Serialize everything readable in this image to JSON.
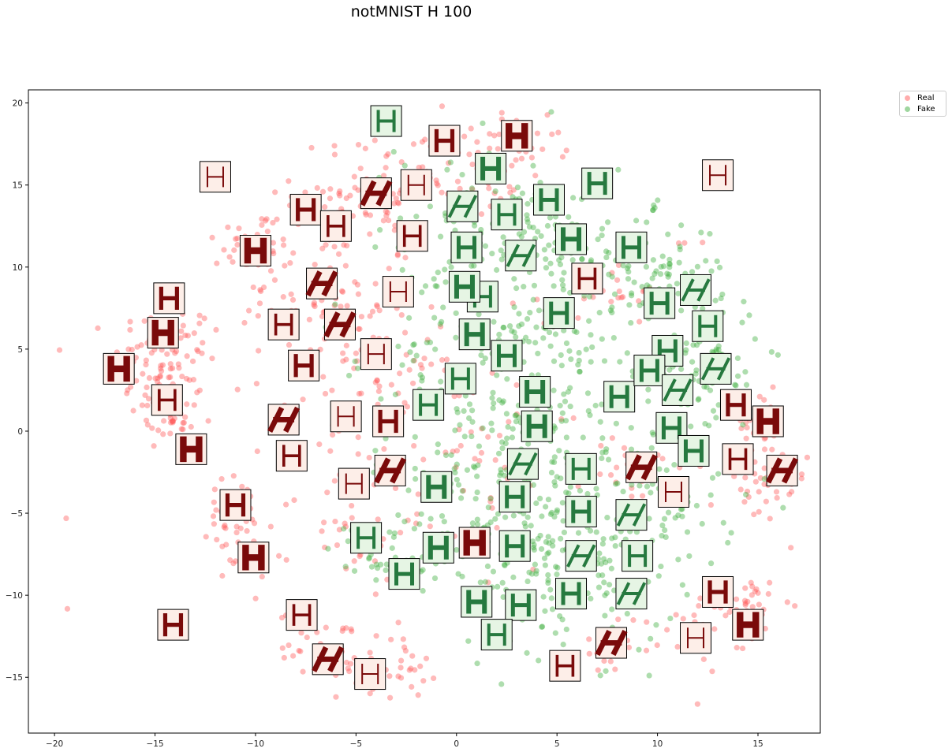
{
  "chart_data": {
    "type": "scatter",
    "title": "notMNIST H 100",
    "xlabel": "",
    "ylabel": "",
    "xlim": [
      -21.3,
      18.1
    ],
    "ylim": [
      -18.4,
      20.8
    ],
    "xticks": [
      -20,
      -15,
      -10,
      -5,
      0,
      5,
      10,
      15
    ],
    "yticks": [
      -15,
      -10,
      -5,
      0,
      5,
      10,
      15,
      20
    ],
    "grid": false,
    "legend_position": "outside top-right",
    "series": [
      {
        "name": "Real",
        "color": "#ff5a5a",
        "clusters": [
          {
            "x": -14.5,
            "y": 4.0,
            "sx": 1.3,
            "sy": 2.0,
            "n": 110
          },
          {
            "x": -14.2,
            "y": 0.5,
            "sx": 0.8,
            "sy": 0.8,
            "n": 25
          },
          {
            "x": -10.0,
            "y": 11.5,
            "sx": 1.0,
            "sy": 1.0,
            "n": 35
          },
          {
            "x": -6.5,
            "y": 8.0,
            "sx": 2.2,
            "sy": 2.2,
            "n": 100
          },
          {
            "x": -4.5,
            "y": 14.5,
            "sx": 1.8,
            "sy": 1.6,
            "n": 70
          },
          {
            "x": -0.5,
            "y": 16.0,
            "sx": 1.8,
            "sy": 1.5,
            "n": 55
          },
          {
            "x": -4.0,
            "y": 2.0,
            "sx": 2.2,
            "sy": 2.0,
            "n": 70
          },
          {
            "x": -11.0,
            "y": -5.5,
            "sx": 1.0,
            "sy": 1.4,
            "n": 40
          },
          {
            "x": -10.0,
            "y": -8.0,
            "sx": 0.8,
            "sy": 0.8,
            "n": 15
          },
          {
            "x": -6.5,
            "y": -13.0,
            "sx": 1.2,
            "sy": 1.0,
            "n": 35
          },
          {
            "x": -3.5,
            "y": -14.5,
            "sx": 1.2,
            "sy": 0.9,
            "n": 35
          },
          {
            "x": 8.0,
            "y": -13.0,
            "sx": 1.0,
            "sy": 1.0,
            "n": 20
          },
          {
            "x": 12.5,
            "y": -12.0,
            "sx": 1.0,
            "sy": 1.2,
            "n": 25
          },
          {
            "x": 14.5,
            "y": -10.5,
            "sx": 0.8,
            "sy": 0.8,
            "n": 35
          },
          {
            "x": 15.0,
            "y": -3.5,
            "sx": 1.2,
            "sy": 1.2,
            "n": 40
          },
          {
            "x": 15.0,
            "y": 0.5,
            "sx": 1.0,
            "sy": 1.0,
            "n": 30
          },
          {
            "x": 7.5,
            "y": 8.5,
            "sx": 1.5,
            "sy": 1.0,
            "n": 25
          },
          {
            "x": 3.5,
            "y": 17.0,
            "sx": 1.2,
            "sy": 1.0,
            "n": 20
          },
          {
            "x": 0.0,
            "y": -2.0,
            "sx": 3.0,
            "sy": 4.0,
            "n": 60
          },
          {
            "x": -5.5,
            "y": -6.0,
            "sx": 1.6,
            "sy": 1.5,
            "n": 30
          },
          {
            "x": 9.0,
            "y": -2.0,
            "sx": 1.2,
            "sy": 1.4,
            "n": 25
          },
          {
            "x": 11.5,
            "y": 11.5,
            "sx": 0.4,
            "sy": 0.4,
            "n": 3
          },
          {
            "x": -19.5,
            "y": -5.3,
            "sx": 0.1,
            "sy": 0.1,
            "n": 1
          },
          {
            "x": -19.2,
            "y": -10.8,
            "sx": 0.1,
            "sy": 0.1,
            "n": 1
          },
          {
            "x": 5.0,
            "y": 18.2,
            "sx": 0.2,
            "sy": 0.1,
            "n": 2
          }
        ]
      },
      {
        "name": "Fake",
        "color": "#3fae3f",
        "clusters": [
          {
            "x": 3.5,
            "y": 5.0,
            "sx": 3.2,
            "sy": 5.5,
            "n": 330
          },
          {
            "x": 2.0,
            "y": 13.0,
            "sx": 2.5,
            "sy": 2.5,
            "n": 80
          },
          {
            "x": 9.5,
            "y": 10.0,
            "sx": 1.6,
            "sy": 1.5,
            "n": 80
          },
          {
            "x": 12.0,
            "y": 4.0,
            "sx": 1.6,
            "sy": 2.4,
            "n": 110
          },
          {
            "x": 10.5,
            "y": -4.5,
            "sx": 2.0,
            "sy": 2.0,
            "n": 60
          },
          {
            "x": 5.5,
            "y": -8.0,
            "sx": 2.8,
            "sy": 2.8,
            "n": 170
          },
          {
            "x": -3.5,
            "y": -7.5,
            "sx": 1.4,
            "sy": 1.0,
            "n": 40
          },
          {
            "x": 1.0,
            "y": -4.0,
            "sx": 2.5,
            "sy": 3.0,
            "n": 100
          }
        ]
      }
    ],
    "thumbnails": {
      "real": [
        [
          -12.0,
          15.5
        ],
        [
          -7.5,
          13.5
        ],
        [
          -10.0,
          11.0
        ],
        [
          -6.0,
          12.5
        ],
        [
          -4.0,
          14.5
        ],
        [
          -2.0,
          15.0
        ],
        [
          -0.6,
          17.7
        ],
        [
          3.0,
          18.0
        ],
        [
          -2.2,
          11.9
        ],
        [
          -6.7,
          9.0
        ],
        [
          -2.9,
          8.5
        ],
        [
          -14.3,
          8.1
        ],
        [
          -14.6,
          6.0
        ],
        [
          -8.6,
          6.5
        ],
        [
          -5.8,
          6.5
        ],
        [
          -4.0,
          4.7
        ],
        [
          -7.6,
          4.0
        ],
        [
          -16.8,
          3.8
        ],
        [
          -14.4,
          1.9
        ],
        [
          -8.6,
          0.7
        ],
        [
          -5.5,
          0.9
        ],
        [
          -3.4,
          0.6
        ],
        [
          -13.2,
          -1.1
        ],
        [
          -8.2,
          -1.5
        ],
        [
          -3.3,
          -2.4
        ],
        [
          -5.1,
          -3.2
        ],
        [
          -11.0,
          -4.5
        ],
        [
          -10.1,
          -7.7
        ],
        [
          -7.7,
          -11.2
        ],
        [
          -6.4,
          -13.9
        ],
        [
          -4.3,
          -14.8
        ],
        [
          -14.1,
          -11.8
        ],
        [
          0.9,
          -6.8
        ],
        [
          5.4,
          -14.3
        ],
        [
          7.7,
          -12.9
        ],
        [
          11.9,
          -12.6
        ],
        [
          13.0,
          -9.8
        ],
        [
          14.5,
          -11.8
        ],
        [
          6.5,
          9.3
        ],
        [
          9.2,
          -2.2
        ],
        [
          10.8,
          -3.7
        ],
        [
          13.9,
          1.6
        ],
        [
          15.5,
          0.6
        ],
        [
          14.0,
          -1.7
        ],
        [
          16.2,
          -2.4
        ],
        [
          13.0,
          15.6
        ]
      ],
      "fake": [
        [
          -3.5,
          18.9
        ],
        [
          1.7,
          16.0
        ],
        [
          4.6,
          14.1
        ],
        [
          7.0,
          15.1
        ],
        [
          0.3,
          13.7
        ],
        [
          2.5,
          13.2
        ],
        [
          5.7,
          11.7
        ],
        [
          8.7,
          11.2
        ],
        [
          0.5,
          11.2
        ],
        [
          3.2,
          10.7
        ],
        [
          1.3,
          8.2
        ],
        [
          0.4,
          8.8
        ],
        [
          5.1,
          7.2
        ],
        [
          10.1,
          7.8
        ],
        [
          11.9,
          8.6
        ],
        [
          12.5,
          6.4
        ],
        [
          0.9,
          5.9
        ],
        [
          2.5,
          4.6
        ],
        [
          10.5,
          4.9
        ],
        [
          12.9,
          3.8
        ],
        [
          0.2,
          3.2
        ],
        [
          3.9,
          2.4
        ],
        [
          8.1,
          2.1
        ],
        [
          9.6,
          3.7
        ],
        [
          11.0,
          2.5
        ],
        [
          -1.4,
          1.6
        ],
        [
          4.0,
          0.3
        ],
        [
          10.7,
          0.2
        ],
        [
          11.8,
          -1.2
        ],
        [
          3.3,
          -2.0
        ],
        [
          6.2,
          -2.3
        ],
        [
          -1.0,
          -3.4
        ],
        [
          2.9,
          -4.0
        ],
        [
          6.2,
          -4.9
        ],
        [
          8.7,
          -5.1
        ],
        [
          -4.5,
          -6.5
        ],
        [
          -0.9,
          -7.1
        ],
        [
          2.9,
          -7.0
        ],
        [
          -2.6,
          -8.7
        ],
        [
          6.2,
          -7.6
        ],
        [
          9.0,
          -7.6
        ],
        [
          1.0,
          -10.4
        ],
        [
          3.2,
          -10.6
        ],
        [
          5.7,
          -9.9
        ],
        [
          8.7,
          -9.9
        ],
        [
          2.0,
          -12.4
        ]
      ]
    }
  },
  "legend": {
    "real_label": "Real",
    "fake_label": "Fake"
  }
}
